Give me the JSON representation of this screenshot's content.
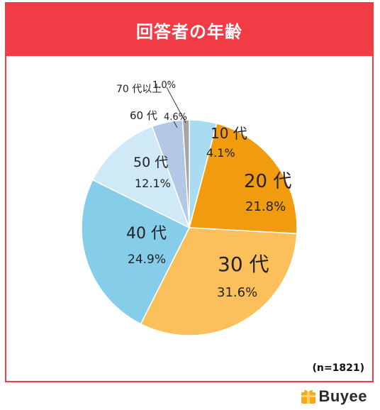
{
  "title": "回答者の年齢",
  "sample_size": "(n=1821)",
  "brand": {
    "name": "Buyee",
    "mark": "gift-box-logo-icon",
    "color": "#f5a91c"
  },
  "colors": {
    "accent": "#f13b45"
  },
  "chart_data": {
    "type": "pie",
    "title": "回答者の年齢",
    "start": "top",
    "direction": "clockwise",
    "slices": [
      {
        "label": "10 代",
        "value": 4.1,
        "display": "4.1%",
        "color": "#a9dcf1"
      },
      {
        "label": "20 代",
        "value": 21.8,
        "display": "21.8%",
        "color": "#f19c0e"
      },
      {
        "label": "30 代",
        "value": 31.6,
        "display": "31.6%",
        "color": "#fbc05c"
      },
      {
        "label": "40 代",
        "value": 24.9,
        "display": "24.9%",
        "color": "#86cdea"
      },
      {
        "label": "50 代",
        "value": 12.1,
        "display": "12.1%",
        "color": "#cfe9f7"
      },
      {
        "label": "60 代",
        "value": 4.6,
        "display": "4.6%",
        "color": "#b3c8e4"
      },
      {
        "label": "70 代以上",
        "value": 1.0,
        "display": "1.0%",
        "color": "#a5a5a5"
      }
    ]
  }
}
